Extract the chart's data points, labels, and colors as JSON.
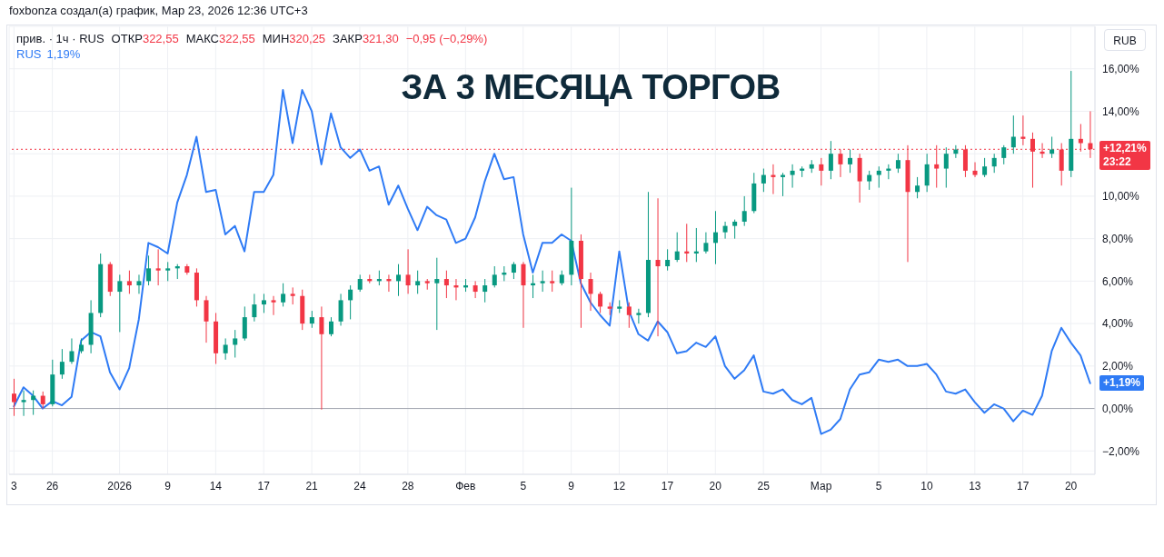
{
  "chart_data": {
    "type": "candlestick",
    "title": "ЗА 3 МЕСЯЦА ТОРГОВ",
    "annotations": [
      "foxbonza создал(а) график, Мар 23, 2026 12:36 UTC+3",
      "прив. · 1ч · RUS",
      "ОТКР322,55",
      "МАКС322,55",
      "МИН320,25",
      "ЗАКР321,30",
      "−0,95 (−0,29%)",
      "1,19%",
      "RUB",
      "23:22",
      "+1,19%"
    ],
    "categories": [
      "3",
      null,
      null,
      null,
      "26",
      null,
      null,
      null,
      null,
      null,
      null,
      "2026",
      null,
      null,
      null,
      null,
      "9",
      null,
      null,
      null,
      null,
      "14",
      null,
      null,
      null,
      null,
      "17",
      null,
      null,
      null,
      null,
      "21",
      null,
      null,
      null,
      null,
      "24",
      null,
      null,
      null,
      null,
      "28",
      null,
      null,
      null,
      null,
      null,
      "Фев",
      null,
      null,
      null,
      null,
      null,
      "5",
      null,
      null,
      null,
      null,
      "9",
      null,
      null,
      null,
      null,
      "12",
      null,
      null,
      null,
      null,
      "17",
      null,
      null,
      null,
      null,
      "20",
      null,
      null,
      null,
      null,
      "25",
      null,
      null,
      null,
      null,
      null,
      "Мар",
      null,
      null,
      null,
      null,
      null,
      "5",
      null,
      null,
      null,
      null,
      "10",
      null,
      null,
      null,
      null,
      "13",
      null,
      null,
      null,
      null,
      "17",
      null,
      null,
      null,
      null,
      "20",
      null,
      null
    ],
    "ohlc": [
      [
        0.7,
        1.4,
        -0.35,
        0.3
      ],
      [
        0.3,
        0.85,
        -0.35,
        0.4
      ],
      [
        0.4,
        0.85,
        -0.3,
        0.6
      ],
      [
        0.6,
        0.8,
        0,
        0.2
      ],
      [
        0.2,
        2.3,
        0.1,
        1.6
      ],
      [
        1.6,
        2.8,
        1.4,
        2.2
      ],
      [
        2.2,
        3.3,
        2.1,
        2.7
      ],
      [
        2.7,
        3.3,
        2.6,
        3
      ],
      [
        3,
        5.1,
        2.6,
        4.5
      ],
      [
        4.5,
        7.3,
        4.3,
        6.8
      ],
      [
        6.8,
        6.9,
        5.3,
        5.5
      ],
      [
        5.5,
        6.3,
        3.6,
        6
      ],
      [
        6,
        6.5,
        5.4,
        5.8
      ],
      [
        5.8,
        6.3,
        5.4,
        6
      ],
      [
        6,
        7.2,
        5.8,
        6.6
      ],
      [
        6.6,
        7.5,
        5.8,
        6.5
      ],
      [
        6.5,
        6.9,
        6,
        6.6
      ],
      [
        6.6,
        6.8,
        6.1,
        6.7
      ],
      [
        6.7,
        6.8,
        6.3,
        6.4
      ],
      [
        6.4,
        6.6,
        4.8,
        5.1
      ],
      [
        5.1,
        5.3,
        3.1,
        4.1
      ],
      [
        4.1,
        4.5,
        2.1,
        2.6
      ],
      [
        2.6,
        3.3,
        2.3,
        3
      ],
      [
        3,
        3.7,
        2.4,
        3.3
      ],
      [
        3.3,
        4.8,
        3.2,
        4.3
      ],
      [
        4.3,
        5.4,
        4.1,
        4.9
      ],
      [
        4.9,
        5.4,
        4.5,
        5.1
      ],
      [
        5.1,
        5.3,
        4.4,
        5
      ],
      [
        5,
        5.9,
        4.8,
        5.4
      ],
      [
        5.4,
        5.7,
        4.9,
        5.3
      ],
      [
        5.3,
        5.6,
        3.7,
        4
      ],
      [
        4,
        4.6,
        3.8,
        4.3
      ],
      [
        4.3,
        4.8,
        -0.05,
        3.5
      ],
      [
        3.5,
        4.3,
        3.4,
        4.1
      ],
      [
        4.1,
        5.4,
        3.9,
        5.1
      ],
      [
        5.1,
        5.8,
        4.2,
        5.6
      ],
      [
        5.6,
        6.3,
        5.5,
        6.1
      ],
      [
        6.1,
        6.3,
        5.9,
        6
      ],
      [
        6,
        6.5,
        5.8,
        6.1
      ],
      [
        6.1,
        6.3,
        5.5,
        6
      ],
      [
        6,
        6.8,
        5.3,
        6.3
      ],
      [
        6.3,
        7.5,
        5.4,
        5.8
      ],
      [
        5.8,
        6.5,
        5.4,
        6
      ],
      [
        6,
        6.1,
        5.6,
        5.9
      ],
      [
        5.9,
        7.1,
        3.7,
        6.1
      ],
      [
        6.1,
        6.5,
        5.2,
        5.8
      ],
      [
        5.8,
        6.1,
        5.1,
        5.7
      ],
      [
        5.7,
        6.1,
        5.5,
        5.8
      ],
      [
        5.8,
        6,
        5.2,
        5.5
      ],
      [
        5.5,
        6.1,
        5,
        5.8
      ],
      [
        5.8,
        6.7,
        5.7,
        6.3
      ],
      [
        6.3,
        6.7,
        6,
        6.4
      ],
      [
        6.4,
        6.9,
        6.1,
        6.8
      ],
      [
        6.8,
        6.9,
        3.8,
        5.8
      ],
      [
        5.8,
        6.3,
        5.2,
        5.9
      ],
      [
        5.9,
        6.5,
        5.5,
        6
      ],
      [
        6,
        6.5,
        5.5,
        5.9
      ],
      [
        5.9,
        6.5,
        5.8,
        6.3
      ],
      [
        6.3,
        10.4,
        5.8,
        7.9
      ],
      [
        7.9,
        8.2,
        3.8,
        6.1
      ],
      [
        6.1,
        6.4,
        4.6,
        5.4
      ],
      [
        5.4,
        5.5,
        4.5,
        4.8
      ],
      [
        4.8,
        5,
        4.4,
        4.7
      ],
      [
        4.7,
        5.1,
        4.5,
        4.8
      ],
      [
        4.8,
        5,
        3.8,
        4.4
      ],
      [
        4.4,
        4.7,
        4,
        4.5
      ],
      [
        4.5,
        10.2,
        4.3,
        7
      ],
      [
        7,
        9.9,
        3.4,
        6.7
      ],
      [
        6.7,
        7.5,
        6.5,
        7
      ],
      [
        7,
        8.3,
        6.9,
        7.4
      ],
      [
        7.4,
        8.7,
        6.9,
        7.3
      ],
      [
        7.3,
        8.5,
        6.9,
        7.4
      ],
      [
        7.4,
        8.3,
        7.3,
        7.8
      ],
      [
        7.8,
        9.3,
        6.8,
        8.3
      ],
      [
        8.3,
        8.8,
        8,
        8.6
      ],
      [
        8.6,
        8.9,
        8,
        8.8
      ],
      [
        8.8,
        10,
        8.6,
        9.3
      ],
      [
        9.3,
        11.1,
        9.2,
        10.6
      ],
      [
        10.6,
        11.3,
        10.2,
        11
      ],
      [
        11,
        11.5,
        10.1,
        10.9
      ],
      [
        10.9,
        11.1,
        10,
        11
      ],
      [
        11,
        11.5,
        10.4,
        11.2
      ],
      [
        11.2,
        11.4,
        10.9,
        11.3
      ],
      [
        11.3,
        11.7,
        11.1,
        11.5
      ],
      [
        11.5,
        11.8,
        10.5,
        11.2
      ],
      [
        11.2,
        12.6,
        10.8,
        12
      ],
      [
        12,
        12.2,
        10.9,
        11.5
      ],
      [
        11.5,
        12.2,
        11.1,
        11.8
      ],
      [
        11.8,
        12,
        9.7,
        10.7
      ],
      [
        10.7,
        11.2,
        10.3,
        11
      ],
      [
        11,
        11.4,
        10.4,
        11.2
      ],
      [
        11.2,
        11.5,
        10.8,
        11.3
      ],
      [
        11.3,
        12,
        11.1,
        11.7
      ],
      [
        11.7,
        12.4,
        6.9,
        10.2
      ],
      [
        10.2,
        10.9,
        9.9,
        10.5
      ],
      [
        10.5,
        12,
        10.2,
        11.5
      ],
      [
        11.5,
        12.4,
        10.4,
        11.3
      ],
      [
        11.3,
        12.3,
        10.4,
        12
      ],
      [
        12,
        12.4,
        11.8,
        12.2
      ],
      [
        12.2,
        12.4,
        10.9,
        11.2
      ],
      [
        11.2,
        11.6,
        10.9,
        11
      ],
      [
        11,
        11.8,
        10.9,
        11.4
      ],
      [
        11.4,
        12,
        11.1,
        11.8
      ],
      [
        11.8,
        12.4,
        11.5,
        12.3
      ],
      [
        12.3,
        13.8,
        12,
        12.8
      ],
      [
        12.8,
        13.8,
        12.4,
        12.7
      ],
      [
        12.7,
        13,
        10.4,
        12.1
      ],
      [
        12.1,
        12.5,
        11.8,
        12
      ],
      [
        12,
        12.8,
        11.8,
        12.2
      ],
      [
        12.2,
        12.5,
        10.5,
        11.2
      ],
      [
        11.2,
        15.9,
        10.9,
        12.7
      ],
      [
        12.7,
        13.4,
        12.1,
        12.5
      ],
      [
        12.5,
        14,
        11.8,
        12.21
      ]
    ],
    "colors": [
      "#f23645",
      "#089981",
      "#089981",
      "#f23645",
      "#089981",
      "#089981",
      "#089981",
      "#089981",
      "#089981",
      "#089981",
      "#f23645",
      "#089981",
      "#f23645",
      "#089981",
      "#089981",
      "#f23645",
      "#089981",
      "#089981",
      "#f23645",
      "#f23645",
      "#f23645",
      "#f23645",
      "#089981",
      "#089981",
      "#089981",
      "#089981",
      "#089981",
      "#f23645",
      "#089981",
      "#f23645",
      "#f23645",
      "#089981",
      "#f23645",
      "#089981",
      "#089981",
      "#089981",
      "#089981",
      "#f23645",
      "#089981",
      "#f23645",
      "#089981",
      "#f23645",
      "#089981",
      "#f23645",
      "#089981",
      "#f23645",
      "#f23645",
      "#089981",
      "#f23645",
      "#089981",
      "#089981",
      "#089981",
      "#089981",
      "#f23645",
      "#089981",
      "#089981",
      "#f23645",
      "#089981",
      "#089981",
      "#f23645",
      "#f23645",
      "#f23645",
      "#f23645",
      "#089981",
      "#f23645",
      "#089981",
      "#089981",
      "#f23645",
      "#089981",
      "#089981",
      "#f23645",
      "#089981",
      "#089981",
      "#089981",
      "#089981",
      "#089981",
      "#089981",
      "#089981",
      "#089981",
      "#f23645",
      "#089981",
      "#089981",
      "#089981",
      "#089981",
      "#f23645",
      "#089981",
      "#f23645",
      "#089981",
      "#f23645",
      "#089981",
      "#089981",
      "#089981",
      "#089981",
      "#f23645",
      "#089981",
      "#089981",
      "#f23645",
      "#089981",
      "#089981",
      "#f23645",
      "#f23645",
      "#089981",
      "#089981",
      "#089981",
      "#089981",
      "#f23645",
      "#f23645",
      "#f23645",
      "#089981",
      "#f23645",
      "#089981",
      "#f23645",
      "#f23645"
    ],
    "series": [
      {
        "type": "line",
        "name": "RUS",
        "color": "#2f7bf5",
        "values": [
          0.1,
          1,
          0.6,
          0,
          0.35,
          0.15,
          0.55,
          3.2,
          3.6,
          3.4,
          1.7,
          0.9,
          1.9,
          4.2,
          7.8,
          7.6,
          7.3,
          9.7,
          11,
          12.8,
          10.2,
          10.3,
          8.2,
          8.6,
          7.4,
          10.2,
          10.2,
          11,
          15,
          12.5,
          15,
          14,
          11.5,
          13.9,
          12.3,
          11.8,
          12.2,
          11.2,
          11.4,
          9.6,
          10.5,
          9.4,
          8.4,
          9.5,
          9.1,
          8.9,
          7.8,
          8,
          9,
          10.7,
          12,
          10.8,
          10.9,
          8.2,
          6.4,
          7.8,
          7.8,
          8.2,
          7.9,
          5.9,
          5,
          4.4,
          3.9,
          7.4,
          4.6,
          3.5,
          3.2,
          4.1,
          3.6,
          2.6,
          2.7,
          3.1,
          2.9,
          3.4,
          2,
          1.4,
          1.8,
          2.5,
          0.8,
          0.7,
          0.9,
          0.4,
          0.2,
          0.5,
          -1.2,
          -1,
          -0.5,
          0.9,
          1.6,
          1.7,
          2.3,
          2.2,
          2.3,
          2,
          2,
          2.1,
          1.6,
          0.8,
          0.7,
          0.9,
          0.3,
          -0.2,
          0.2,
          0,
          -0.6,
          -0.1,
          -0.3,
          0.6,
          2.7,
          3.8,
          3.1,
          2.5,
          1.19
        ]
      }
    ],
    "ylim": [
      -3.1,
      18
    ],
    "yticks": [
      {
        "value": -2,
        "label": "−2,00%"
      },
      {
        "value": 0,
        "label": "0,00%"
      },
      {
        "value": 2,
        "label": "2,00%"
      },
      {
        "value": 4,
        "label": "4,00%"
      },
      {
        "value": 6,
        "label": "6,00%"
      },
      {
        "value": 8,
        "label": "8,00%"
      },
      {
        "value": 10,
        "label": "10,00%"
      },
      {
        "value": 12,
        "label": null
      },
      {
        "value": 14,
        "label": "14,00%"
      },
      {
        "value": 16,
        "label": "16,00%"
      }
    ],
    "ref_lines": [
      {
        "axis": "y",
        "value": 12.21,
        "label": "+12,21%",
        "color": "#f23645",
        "line_style": "dotted"
      },
      {
        "axis": "y",
        "value": 0,
        "color": "#a3a6af",
        "line_style": "solid"
      }
    ],
    "grid": true,
    "legend": "top left"
  }
}
